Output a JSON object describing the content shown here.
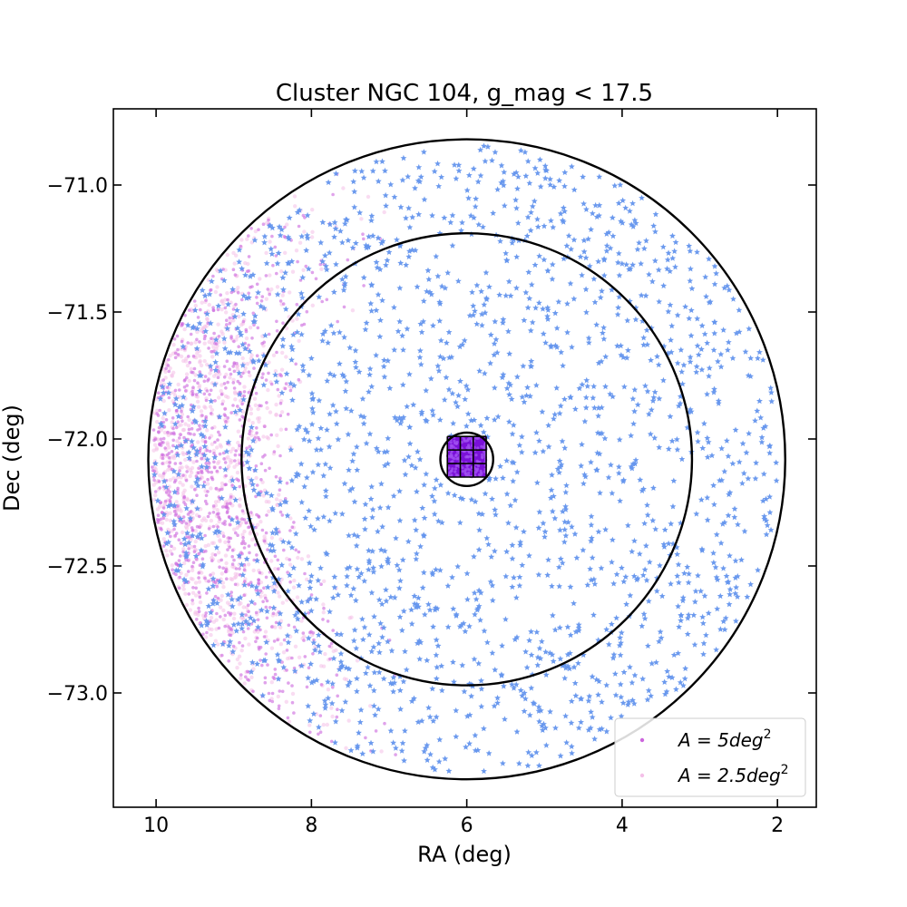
{
  "chart_data": {
    "type": "scatter",
    "title": "Cluster NGC 104, g_mag < 17.5",
    "xlabel": "RA (deg)",
    "ylabel": "Dec (deg)",
    "xlim": [
      10.55,
      1.5
    ],
    "ylim": [
      -73.45,
      -70.7
    ],
    "xticks": [
      10,
      8,
      6,
      4,
      2
    ],
    "xtick_labels": [
      "10",
      "8",
      "6",
      "4",
      "2"
    ],
    "yticks": [
      -71.0,
      -71.5,
      -72.0,
      -72.5,
      -73.0
    ],
    "ytick_labels": [
      "−71.0",
      "−71.5",
      "−72.0",
      "−72.5",
      "−73.0"
    ],
    "grid": false,
    "legend_position": "lower-right",
    "legend": [
      {
        "label_math": "A = 5deg",
        "label_sup": "2",
        "color": "#cc66dd"
      },
      {
        "label_math": "A = 2.5deg",
        "label_sup": "2",
        "color": "#f4c0e8"
      }
    ],
    "cluster_center": {
      "ra": 6.0,
      "dec": -72.08
    },
    "circles": [
      {
        "name": "outer-annulus-edge",
        "ra_radius": 4.1,
        "dec_radius": 1.26
      },
      {
        "name": "inner-annulus-edge",
        "ra_radius": 2.9,
        "dec_radius": 0.89
      },
      {
        "name": "core-region",
        "ra_radius": 0.34,
        "dec_radius": 0.105
      }
    ],
    "core_grid": {
      "ra_range": [
        6.25,
        5.75
      ],
      "dec_range": [
        -71.99,
        -72.15
      ],
      "cells": 3
    },
    "series": [
      {
        "name": "A = 5deg²",
        "marker": "star",
        "color": "#6495ed",
        "count": 1900,
        "distribution": "uniform between inner core and outer edge"
      },
      {
        "name": "A = 5deg²",
        "marker": "dot",
        "color": "#cc66dd",
        "count": 900,
        "distribution": "concentrated in lower-left of annulus (SMC direction)"
      },
      {
        "name": "A = 2.5deg²",
        "marker": "dot",
        "color": "#f4c0e8",
        "count": 900,
        "distribution": "concentrated in lower-left of annulus (SMC direction)"
      }
    ]
  }
}
